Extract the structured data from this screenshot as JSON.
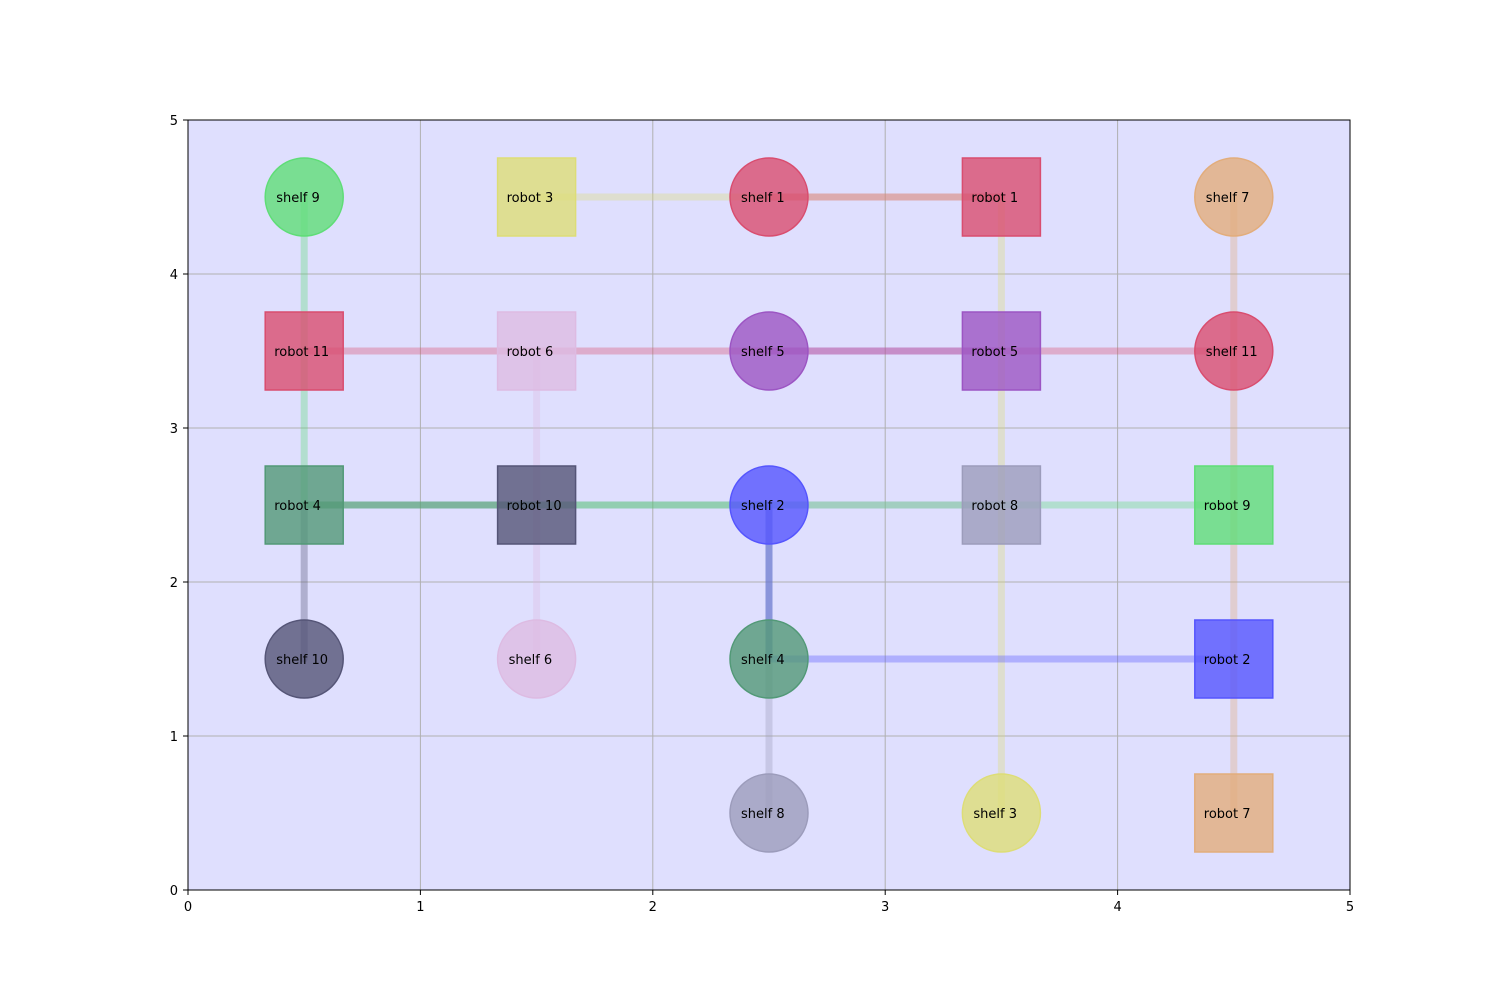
{
  "chart_data": {
    "type": "scatter",
    "title": "",
    "xlabel": "",
    "ylabel": "",
    "xlim": [
      0,
      5
    ],
    "ylim": [
      0,
      5
    ],
    "xticks": [
      "0",
      "1",
      "2",
      "3",
      "4",
      "5"
    ],
    "yticks": [
      "0",
      "1",
      "2",
      "3",
      "4",
      "5"
    ],
    "grid": true,
    "background_color": "#dfdffe",
    "shelves": [
      {
        "label": "shelf 9",
        "x": 0.5,
        "y": 4.5,
        "color": "#5fdd77"
      },
      {
        "label": "shelf 1",
        "x": 2.5,
        "y": 4.5,
        "color": "#d94d6f"
      },
      {
        "label": "shelf 7",
        "x": 4.5,
        "y": 4.5,
        "color": "#e2ad7c"
      },
      {
        "label": "shelf 5",
        "x": 2.5,
        "y": 3.5,
        "color": "#9c55c3"
      },
      {
        "label": "shelf 11",
        "x": 4.5,
        "y": 3.5,
        "color": "#d94d6f"
      },
      {
        "label": "shelf 2",
        "x": 2.5,
        "y": 2.5,
        "color": "#5555fe"
      },
      {
        "label": "shelf 10",
        "x": 0.5,
        "y": 1.5,
        "color": "#555577"
      },
      {
        "label": "shelf 6",
        "x": 1.5,
        "y": 1.5,
        "color": "#ddbbe2"
      },
      {
        "label": "shelf 4",
        "x": 2.5,
        "y": 1.5,
        "color": "#529977"
      },
      {
        "label": "shelf 8",
        "x": 2.5,
        "y": 0.5,
        "color": "#9c9cbb"
      },
      {
        "label": "shelf 3",
        "x": 3.5,
        "y": 0.5,
        "color": "#dddd77"
      }
    ],
    "robots": [
      {
        "label": "robot 3",
        "x": 1.5,
        "y": 4.5,
        "color": "#dddd77"
      },
      {
        "label": "robot 1",
        "x": 3.5,
        "y": 4.5,
        "color": "#d94d6f"
      },
      {
        "label": "robot 11",
        "x": 0.5,
        "y": 3.5,
        "color": "#d94d6f"
      },
      {
        "label": "robot 6",
        "x": 1.5,
        "y": 3.5,
        "color": "#ddbbe2"
      },
      {
        "label": "robot 5",
        "x": 3.5,
        "y": 3.5,
        "color": "#9c55c3"
      },
      {
        "label": "robot 4",
        "x": 0.5,
        "y": 2.5,
        "color": "#529977"
      },
      {
        "label": "robot 10",
        "x": 1.5,
        "y": 2.5,
        "color": "#555577"
      },
      {
        "label": "robot 8",
        "x": 3.5,
        "y": 2.5,
        "color": "#9c9cbb"
      },
      {
        "label": "robot 9",
        "x": 4.5,
        "y": 2.5,
        "color": "#5fdd77"
      },
      {
        "label": "robot 2",
        "x": 4.5,
        "y": 1.5,
        "color": "#5555fe"
      },
      {
        "label": "robot 7",
        "x": 4.5,
        "y": 0.5,
        "color": "#e2ad7c"
      }
    ],
    "paths": [
      {
        "robot": "robot 3",
        "color": "#dddd77",
        "points": [
          [
            1.5,
            4.5
          ],
          [
            2.5,
            4.5
          ],
          [
            3.5,
            4.5
          ],
          [
            3.5,
            0.5
          ]
        ]
      },
      {
        "robot": "robot 1",
        "color": "#d94d6f",
        "points": [
          [
            3.5,
            4.5
          ],
          [
            2.5,
            4.5
          ]
        ]
      },
      {
        "robot": "robot 11",
        "color": "#d94d6f",
        "points": [
          [
            0.5,
            3.5
          ],
          [
            4.5,
            3.5
          ]
        ]
      },
      {
        "robot": "robot 6",
        "color": "#ddbbe2",
        "points": [
          [
            1.5,
            3.5
          ],
          [
            1.5,
            1.5
          ]
        ]
      },
      {
        "robot": "robot 5",
        "color": "#9c55c3",
        "points": [
          [
            3.5,
            3.5
          ],
          [
            2.5,
            3.5
          ]
        ]
      },
      {
        "robot": "robot 4",
        "color": "#529977",
        "points": [
          [
            0.5,
            2.5
          ],
          [
            2.5,
            2.5
          ],
          [
            2.5,
            1.5
          ]
        ]
      },
      {
        "robot": "robot 10",
        "color": "#555577",
        "points": [
          [
            1.5,
            2.5
          ],
          [
            0.5,
            2.5
          ],
          [
            0.5,
            1.5
          ]
        ]
      },
      {
        "robot": "robot 8",
        "color": "#9c9cbb",
        "points": [
          [
            3.5,
            2.5
          ],
          [
            2.5,
            2.5
          ],
          [
            2.5,
            0.5
          ]
        ]
      },
      {
        "robot": "robot 9",
        "color": "#5fdd77",
        "points": [
          [
            4.5,
            2.5
          ],
          [
            0.5,
            2.5
          ],
          [
            0.5,
            4.5
          ]
        ]
      },
      {
        "robot": "robot 2",
        "color": "#5555fe",
        "points": [
          [
            4.5,
            1.5
          ],
          [
            2.5,
            1.5
          ],
          [
            2.5,
            2.5
          ]
        ]
      },
      {
        "robot": "robot 7",
        "color": "#e2ad7c",
        "points": [
          [
            4.5,
            0.5
          ],
          [
            4.5,
            4.5
          ]
        ]
      }
    ]
  }
}
